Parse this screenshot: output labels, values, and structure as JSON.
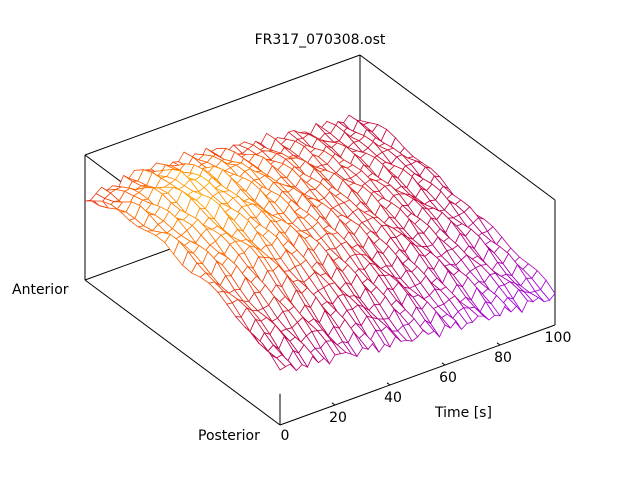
{
  "chart_data": {
    "type": "surface",
    "title": "FR317_070308.ost",
    "xlabel": "Time [s]",
    "ylabel_front": "Posterior",
    "ylabel_back": "Anterior",
    "xlim": [
      0,
      100
    ],
    "x_ticks": [
      "0",
      "20",
      "40",
      "60",
      "80",
      "100"
    ],
    "x_tick_values": [
      0,
      20,
      40,
      60,
      80,
      100
    ],
    "zlim": [
      0,
      1
    ],
    "grid_time": [
      0,
      20,
      40,
      60,
      80,
      100
    ],
    "grid_position": [
      0,
      0.2,
      0.4,
      0.6,
      0.8,
      1
    ],
    "z": [
      [
        0.44,
        0.4,
        0.35,
        0.3,
        0.25,
        0.22
      ],
      [
        0.58,
        0.6,
        0.55,
        0.45,
        0.38,
        0.32
      ],
      [
        0.72,
        0.8,
        0.72,
        0.6,
        0.5,
        0.42
      ],
      [
        0.78,
        0.88,
        0.8,
        0.68,
        0.56,
        0.48
      ],
      [
        0.74,
        0.9,
        0.82,
        0.7,
        0.58,
        0.5
      ],
      [
        0.64,
        0.72,
        0.7,
        0.62,
        0.55,
        0.48
      ]
    ],
    "colormap": [
      "#9a00ff",
      "#c00040",
      "#ff6000",
      "#ffd000"
    ]
  }
}
